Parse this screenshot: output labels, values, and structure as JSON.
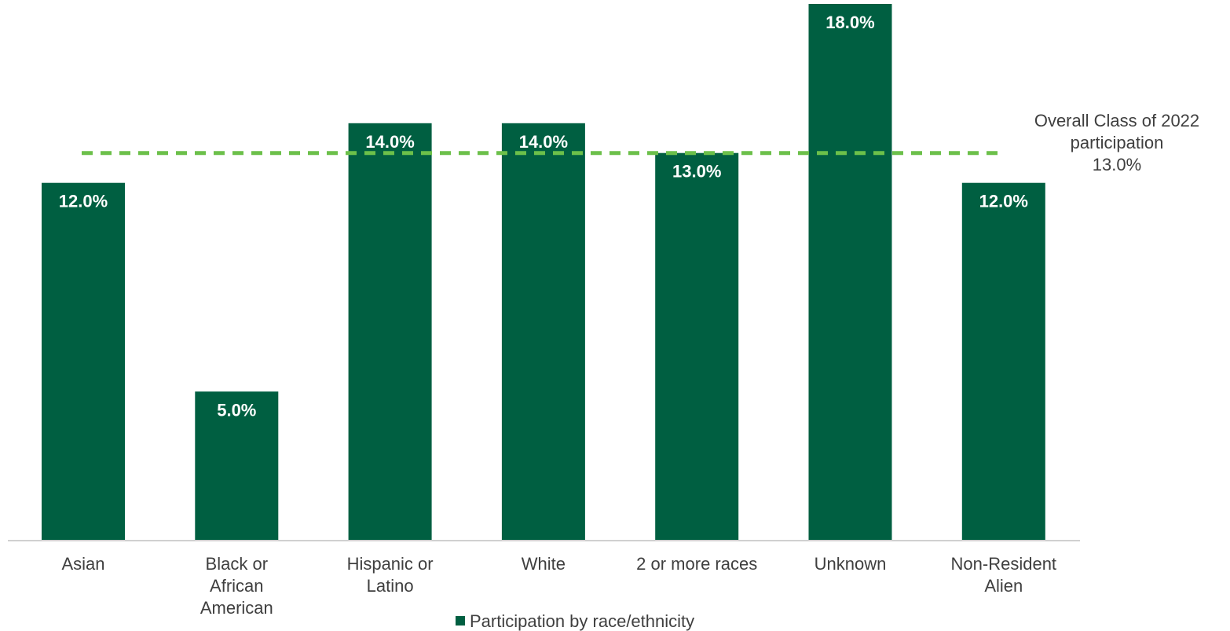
{
  "chart_data": {
    "type": "bar",
    "categories": [
      [
        "Asian"
      ],
      [
        "Black or",
        "African",
        "American"
      ],
      [
        "Hispanic or",
        "Latino"
      ],
      [
        "White"
      ],
      [
        "2 or more races"
      ],
      [
        "Unknown"
      ],
      [
        "Non-Resident",
        "Alien"
      ]
    ],
    "series": [
      {
        "name": "Participation by race/ethnicity",
        "values": [
          12.0,
          5.0,
          14.0,
          14.0,
          13.0,
          18.0,
          12.0
        ],
        "data_labels": [
          "12.0%",
          "5.0%",
          "14.0%",
          "14.0%",
          "13.0%",
          "18.0%",
          "12.0%"
        ],
        "color": "#005f41"
      }
    ],
    "reference_line": {
      "value": 13.0,
      "label_lines": [
        "Overall Class of 2022",
        "participation",
        "13.0%"
      ],
      "color": "#6cc04a",
      "style": "dashed"
    },
    "ylim": [
      0,
      18.0
    ],
    "grid": false,
    "legend": {
      "position": "bottom",
      "label": "Participation by race/ethnicity"
    }
  }
}
